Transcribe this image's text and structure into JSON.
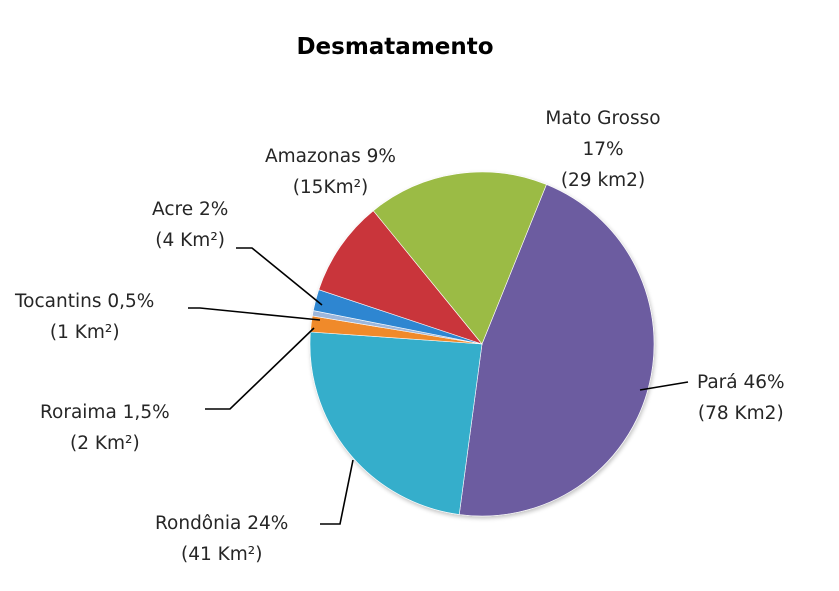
{
  "chart_data": {
    "type": "pie",
    "title": "Desmatamento",
    "slices": [
      {
        "name": "Pará",
        "percent": 46,
        "area_km2": 78,
        "color": "#6C5BA0",
        "label_lines": [
          "Pará  46%",
          "(78 Km2)"
        ]
      },
      {
        "name": "Rondônia",
        "percent": 24,
        "area_km2": 41,
        "color": "#35AECB",
        "label_lines": [
          "Rondônia 24%",
          "(41 Km²)"
        ]
      },
      {
        "name": "Roraima",
        "percent": 1.5,
        "area_km2": 2,
        "color": "#F08A2C",
        "label_lines": [
          "Roraima 1,5%",
          "(2 Km²)"
        ]
      },
      {
        "name": "Tocantins",
        "percent": 0.5,
        "area_km2": 1,
        "color": "#9DB7DB",
        "label_lines": [
          "Tocantins 0,5%",
          "(1 Km²)"
        ]
      },
      {
        "name": "Acre",
        "percent": 2,
        "area_km2": 4,
        "color": "#2E86D1",
        "label_lines": [
          "Acre 2%",
          "(4 Km²)"
        ]
      },
      {
        "name": "Amazonas",
        "percent": 9,
        "area_km2": 15,
        "color": "#C9343A",
        "label_lines": [
          "Amazonas 9%",
          "(15Km²)"
        ]
      },
      {
        "name": "Mato Grosso",
        "percent": 17,
        "area_km2": 29,
        "color": "#9BBB45",
        "label_lines": [
          "Mato Grosso",
          "17%",
          "(29 km2)"
        ]
      }
    ],
    "start_angle_deg": 22,
    "direction": "clockwise",
    "legend": "none",
    "data_labels": "outside with leader lines"
  }
}
